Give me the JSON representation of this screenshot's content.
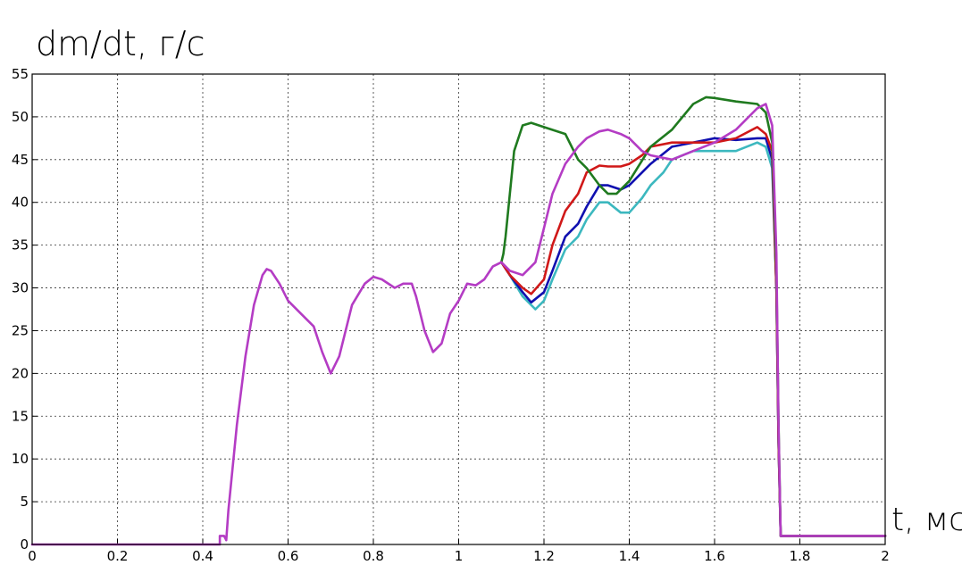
{
  "chart_data": {
    "type": "line",
    "title": "",
    "ylabel": "dm/dt, г/с",
    "xlabel": "t, мс",
    "xlim": [
      0,
      2
    ],
    "ylim": [
      0,
      55
    ],
    "xticks": [
      0,
      0.2,
      0.4,
      0.6,
      0.8,
      1,
      1.2,
      1.4,
      1.6,
      1.8,
      2
    ],
    "xtick_labels": [
      "0",
      "0.2",
      "0.4",
      "0.6",
      "0.8",
      "1",
      "1.2",
      "1.4",
      "1.6",
      "1.8",
      "2"
    ],
    "yticks": [
      0,
      5,
      10,
      15,
      20,
      25,
      30,
      35,
      40,
      45,
      50,
      55
    ],
    "ytick_labels": [
      "0",
      "5",
      "10",
      "15",
      "20",
      "25",
      "30",
      "35",
      "40",
      "45",
      "50",
      "55"
    ],
    "grid": true,
    "legend": false,
    "series": [
      {
        "color": "#3cb8bf",
        "x": [
          1.1,
          1.12,
          1.15,
          1.18,
          1.2,
          1.22,
          1.25,
          1.28,
          1.3,
          1.33,
          1.35,
          1.38,
          1.4,
          1.43,
          1.45,
          1.48,
          1.5,
          1.55,
          1.6,
          1.65,
          1.7,
          1.72,
          1.735,
          1.745,
          1.75,
          1.755,
          1.76,
          1.8,
          1.9,
          2
        ],
        "y": [
          33,
          31.5,
          29,
          27.5,
          28.5,
          31,
          34.5,
          36,
          38,
          40,
          40,
          38.8,
          38.8,
          40.5,
          42,
          43.5,
          45,
          46,
          46,
          46,
          47,
          46.5,
          44,
          30,
          12,
          1,
          1,
          1,
          1,
          1
        ]
      },
      {
        "color": "#1010b0",
        "x": [
          1.1,
          1.12,
          1.15,
          1.17,
          1.2,
          1.22,
          1.25,
          1.28,
          1.3,
          1.33,
          1.35,
          1.38,
          1.4,
          1.43,
          1.45,
          1.5,
          1.55,
          1.6,
          1.65,
          1.7,
          1.72,
          1.735,
          1.745,
          1.75,
          1.755,
          1.76,
          1.8,
          1.9,
          2
        ],
        "y": [
          33,
          31.5,
          29.5,
          28.3,
          29.5,
          32,
          36,
          37.5,
          39.5,
          42,
          42,
          41.5,
          42,
          43.5,
          44.5,
          46.5,
          47,
          47.5,
          47.3,
          47.5,
          47.5,
          45,
          30,
          12,
          1,
          1,
          1,
          1,
          1
        ]
      },
      {
        "color": "#d01818",
        "x": [
          1.1,
          1.12,
          1.15,
          1.17,
          1.2,
          1.22,
          1.25,
          1.28,
          1.3,
          1.33,
          1.35,
          1.38,
          1.4,
          1.43,
          1.45,
          1.5,
          1.55,
          1.6,
          1.65,
          1.7,
          1.72,
          1.735,
          1.745,
          1.75,
          1.755,
          1.76,
          1.8,
          1.9,
          2
        ],
        "y": [
          33,
          31.5,
          30,
          29.3,
          31,
          35,
          39,
          41,
          43.5,
          44.3,
          44.2,
          44.2,
          44.5,
          45.5,
          46.5,
          47,
          47,
          47,
          47.5,
          48.8,
          48,
          46,
          30,
          12,
          1,
          1,
          1,
          1,
          1
        ]
      },
      {
        "color": "#1f7a1f",
        "x": [
          1.1,
          1.105,
          1.11,
          1.12,
          1.13,
          1.15,
          1.17,
          1.2,
          1.25,
          1.28,
          1.3,
          1.33,
          1.35,
          1.37,
          1.4,
          1.45,
          1.5,
          1.55,
          1.58,
          1.6,
          1.65,
          1.7,
          1.72,
          1.735,
          1.745,
          1.75,
          1.755,
          1.76,
          1.8,
          1.9,
          2
        ],
        "y": [
          33,
          34,
          36,
          41,
          46,
          49,
          49.3,
          48.8,
          48,
          45,
          44,
          42,
          41,
          41,
          42.5,
          46.5,
          48.5,
          51.5,
          52.3,
          52.2,
          51.8,
          51.5,
          50.5,
          47,
          32,
          14,
          1,
          1,
          1,
          1,
          1
        ]
      },
      {
        "color": "#b43cc4",
        "x": [
          0,
          0.44,
          0.44,
          0.45,
          0.455,
          0.46,
          0.48,
          0.5,
          0.52,
          0.54,
          0.55,
          0.56,
          0.58,
          0.6,
          0.63,
          0.66,
          0.68,
          0.7,
          0.72,
          0.75,
          0.78,
          0.8,
          0.82,
          0.85,
          0.87,
          0.89,
          0.9,
          0.92,
          0.94,
          0.96,
          0.98,
          1,
          1.02,
          1.04,
          1.06,
          1.08,
          1.1,
          1.12,
          1.15,
          1.18,
          1.2,
          1.22,
          1.25,
          1.28,
          1.3,
          1.33,
          1.35,
          1.38,
          1.4,
          1.43,
          1.45,
          1.5,
          1.55,
          1.6,
          1.65,
          1.7,
          1.72,
          1.735,
          1.745,
          1.75,
          1.755,
          1.76,
          1.8,
          1.9,
          2
        ],
        "y": [
          0,
          0,
          1,
          1,
          0.5,
          4,
          14,
          22,
          28,
          31.5,
          32.2,
          32,
          30.5,
          28.5,
          27,
          25.5,
          22.5,
          20,
          22,
          28,
          30.5,
          31.3,
          31,
          30,
          30.5,
          30.5,
          29,
          25,
          22.5,
          23.5,
          27,
          28.5,
          30.5,
          30.3,
          31,
          32.5,
          33,
          32,
          31.5,
          33,
          37,
          41,
          44.5,
          46.5,
          47.5,
          48.3,
          48.5,
          48,
          47.5,
          46,
          45.5,
          45,
          46,
          47,
          48.5,
          51,
          51.5,
          49,
          34,
          14,
          1,
          1,
          1,
          1,
          1
        ]
      }
    ]
  }
}
